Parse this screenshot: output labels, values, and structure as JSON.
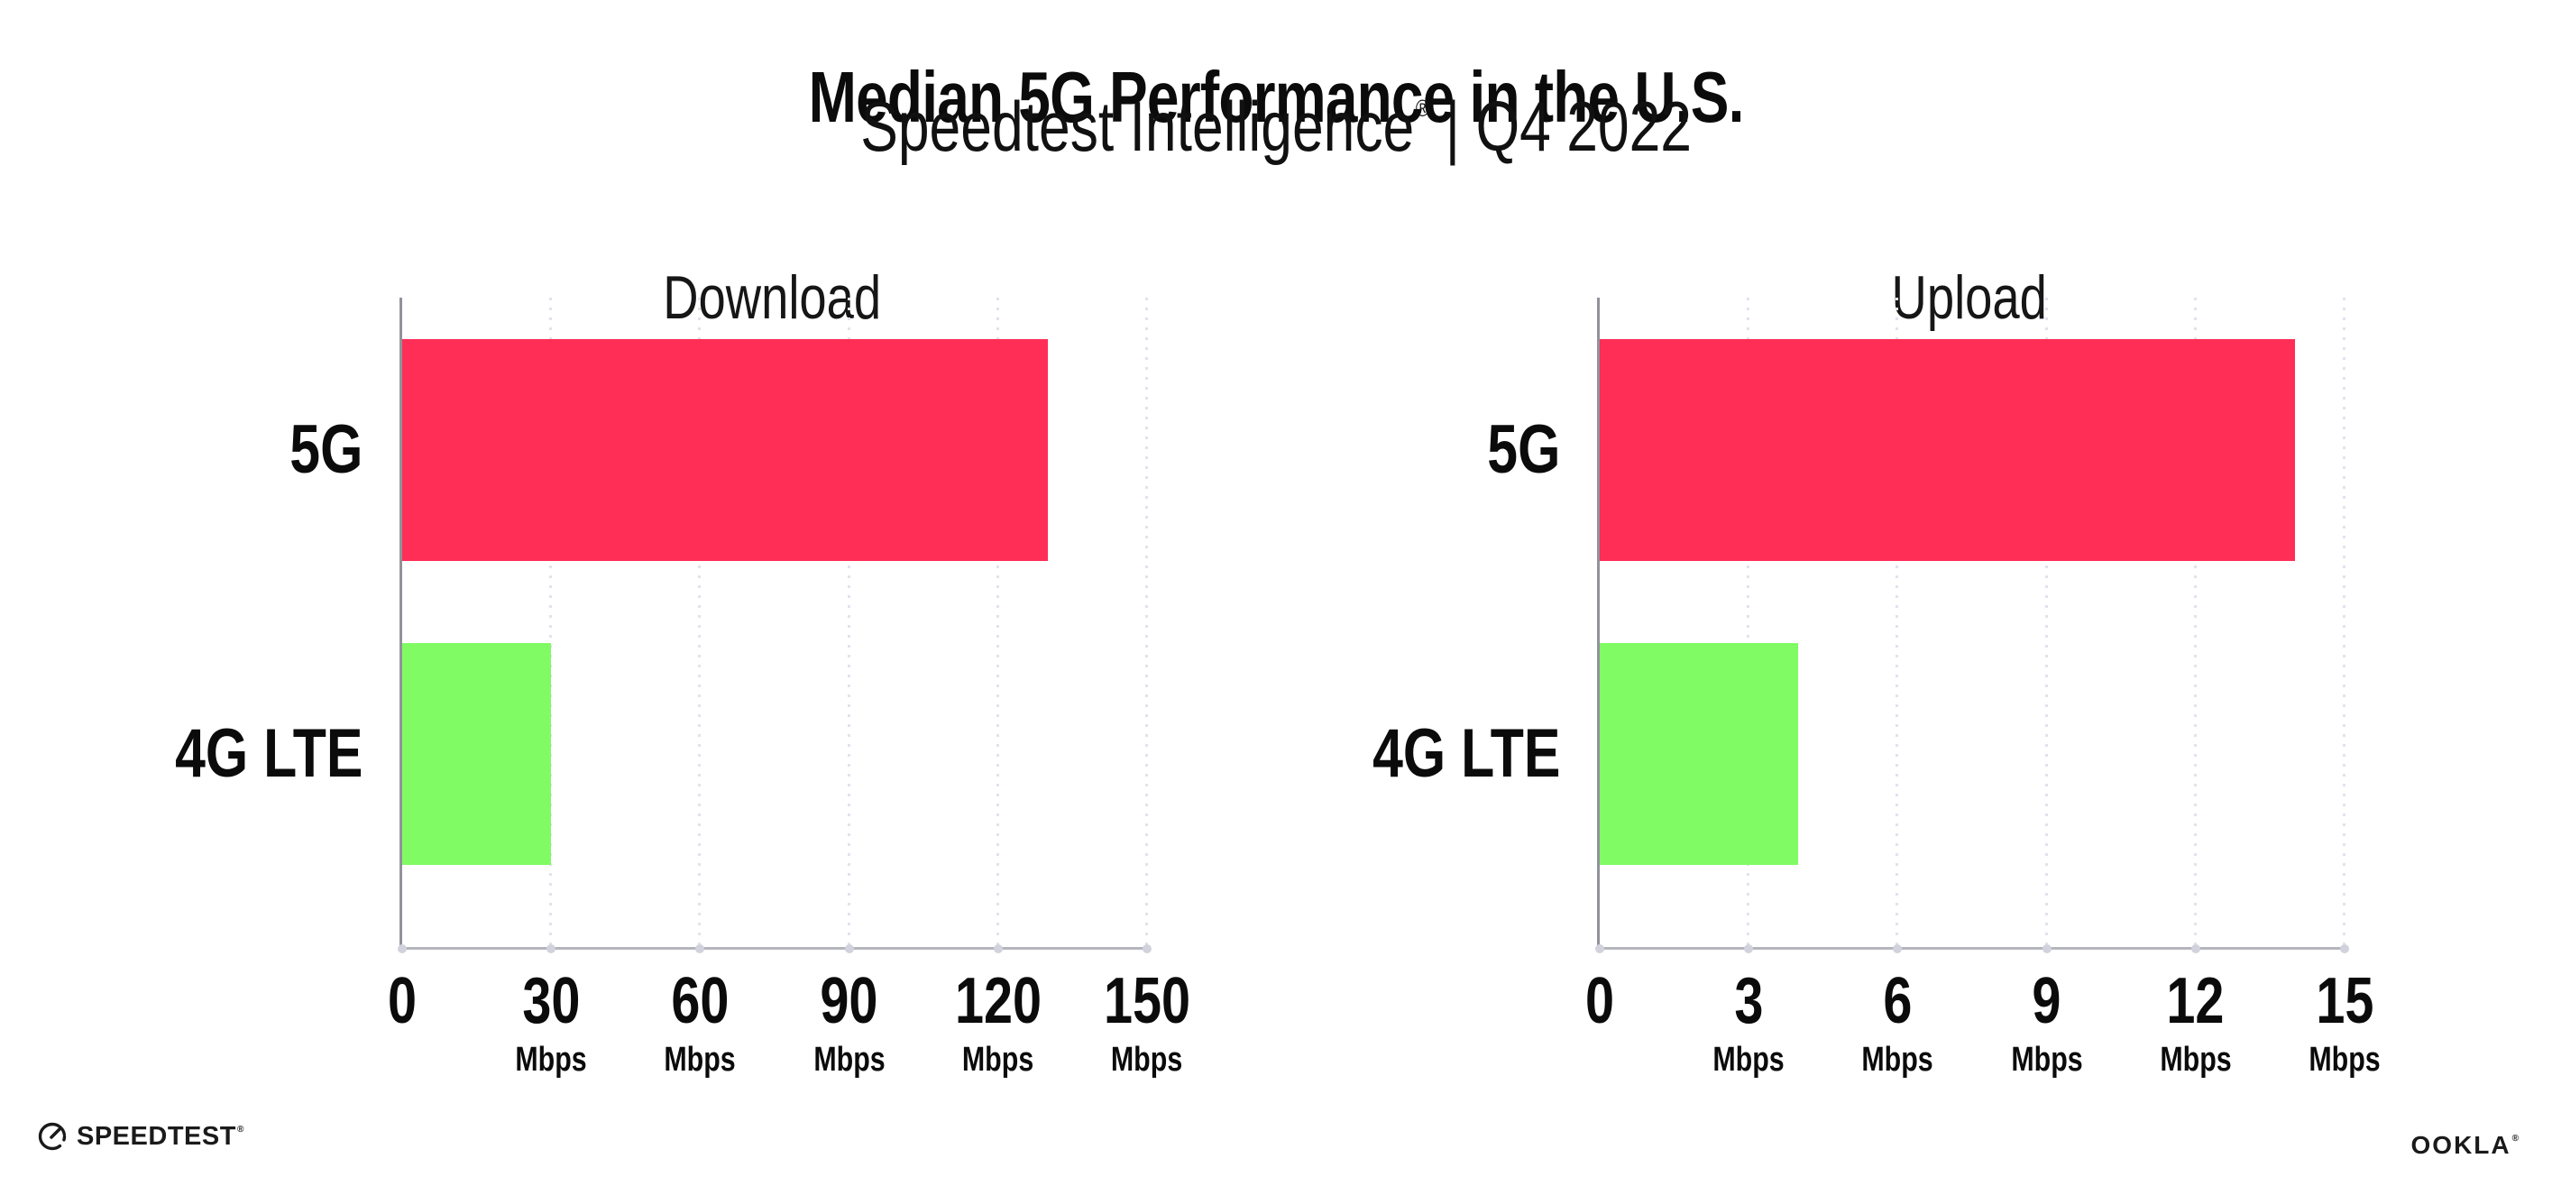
{
  "header": {
    "title": "Median 5G Performance in the U.S.",
    "subtitle": {
      "brand": "Speedtest Intelligence",
      "reg": "®",
      "sep": "|",
      "period": "Q4 2022"
    }
  },
  "chart_data": [
    {
      "type": "bar",
      "orientation": "horizontal",
      "title": "Download",
      "categories": [
        "5G",
        "4G LTE"
      ],
      "values": [
        130,
        30
      ],
      "unit": "Mbps",
      "xlim": [
        0,
        150
      ],
      "ticks": [
        0,
        30,
        60,
        90,
        120,
        150
      ],
      "bar_colors": [
        "#ff2e56",
        "#80fb64"
      ],
      "grid": "dotted-vertical",
      "legend": "none"
    },
    {
      "type": "bar",
      "orientation": "horizontal",
      "title": "Upload",
      "categories": [
        "5G",
        "4G LTE"
      ],
      "values": [
        14,
        4
      ],
      "unit": "Mbps",
      "xlim": [
        0,
        15
      ],
      "ticks": [
        0,
        3,
        6,
        9,
        12,
        15
      ],
      "bar_colors": [
        "#ff2e56",
        "#80fb64"
      ],
      "grid": "dotted-vertical",
      "legend": "none"
    }
  ],
  "colors": {
    "bar_5g": "#ff2e56",
    "bar_4g_lte": "#80fb64",
    "gridline": "#e2e2ee",
    "axis": "#b5b5bd",
    "text": "#0b0b0b"
  },
  "footer": {
    "speedtest": {
      "label": "SPEEDTEST",
      "reg": "®",
      "icon": "speedometer-gauge-icon"
    },
    "ookla": {
      "label": "OOKLA",
      "reg": "®"
    }
  }
}
